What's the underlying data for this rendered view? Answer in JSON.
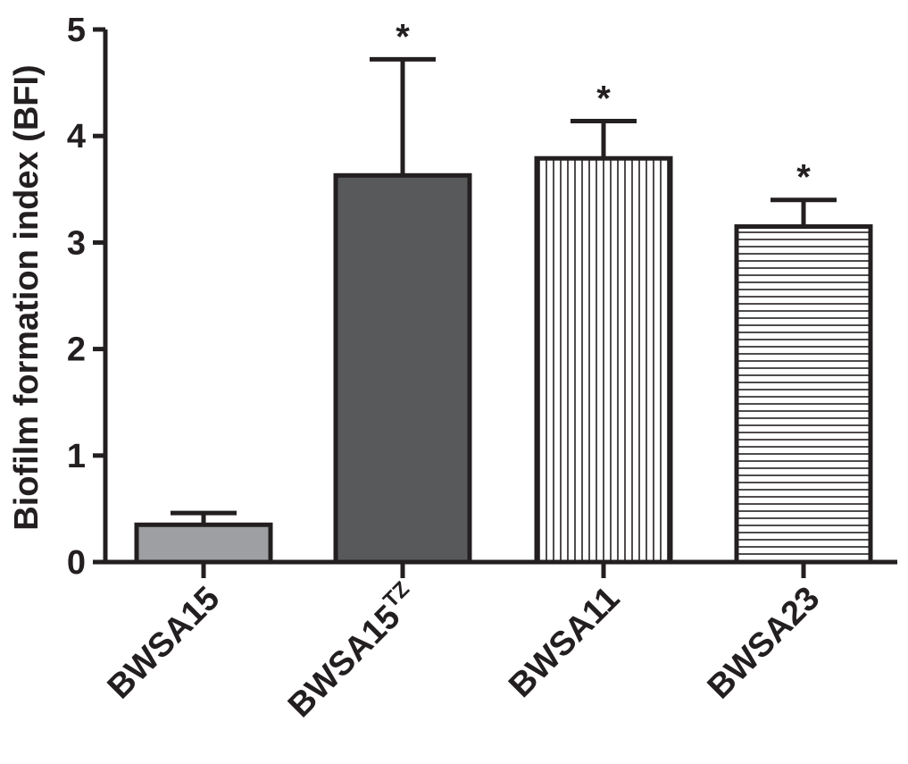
{
  "chart_data": {
    "type": "bar",
    "title": "",
    "xlabel": "",
    "ylabel": "Biofilm formation index (BFI)",
    "ylim": [
      0,
      5
    ],
    "yticks": [
      "0",
      "1",
      "2",
      "3",
      "4",
      "5"
    ],
    "grid": false,
    "categories": [
      {
        "base": "BWSA15",
        "sup": ""
      },
      {
        "base": "BWSA15",
        "sup": "TZ"
      },
      {
        "base": "BWSA11",
        "sup": ""
      },
      {
        "base": "BWSA23",
        "sup": ""
      }
    ],
    "values": [
      0.35,
      3.63,
      3.79,
      3.15
    ],
    "errors": [
      0.11,
      1.09,
      0.35,
      0.25
    ],
    "annotations": [
      "",
      "*",
      "*",
      "*"
    ],
    "fills": [
      "solid-light-gray",
      "solid-dark-gray",
      "vertical-stripes",
      "horizontal-stripes"
    ]
  },
  "colors": {
    "axis": "#231f20",
    "light_gray": "#9d9fa2",
    "dark_gray": "#58595b",
    "stripe_bg": "#ffffff"
  }
}
